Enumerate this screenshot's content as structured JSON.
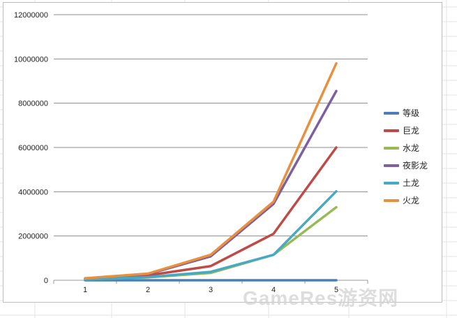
{
  "watermark": "GameRes游资网",
  "chart_data": {
    "type": "line",
    "categories": [
      "1",
      "2",
      "3",
      "4",
      "5"
    ],
    "ylim": [
      0,
      12000000
    ],
    "yticks": [
      "0",
      "2000000",
      "4000000",
      "6000000",
      "8000000",
      "10000000",
      "12000000"
    ],
    "grid": "horizontal",
    "legend_position": "right",
    "series": [
      {
        "name": "等级",
        "color": "#4a7ebb",
        "values": [
          1,
          2,
          3,
          4,
          5
        ]
      },
      {
        "name": "巨龙",
        "color": "#be4b48",
        "values": [
          60000,
          220000,
          640000,
          2100000,
          6000000
        ]
      },
      {
        "name": "水龙",
        "color": "#98b954",
        "values": [
          40000,
          130000,
          330000,
          1150000,
          3300000
        ]
      },
      {
        "name": "夜影龙",
        "color": "#7d60a0",
        "values": [
          80000,
          280000,
          1080000,
          3450000,
          8550000
        ]
      },
      {
        "name": "土龙",
        "color": "#46aac5",
        "values": [
          40000,
          140000,
          380000,
          1150000,
          4020000
        ]
      },
      {
        "name": "火龙",
        "color": "#e8903e",
        "values": [
          90000,
          300000,
          1150000,
          3550000,
          9800000
        ]
      }
    ]
  }
}
